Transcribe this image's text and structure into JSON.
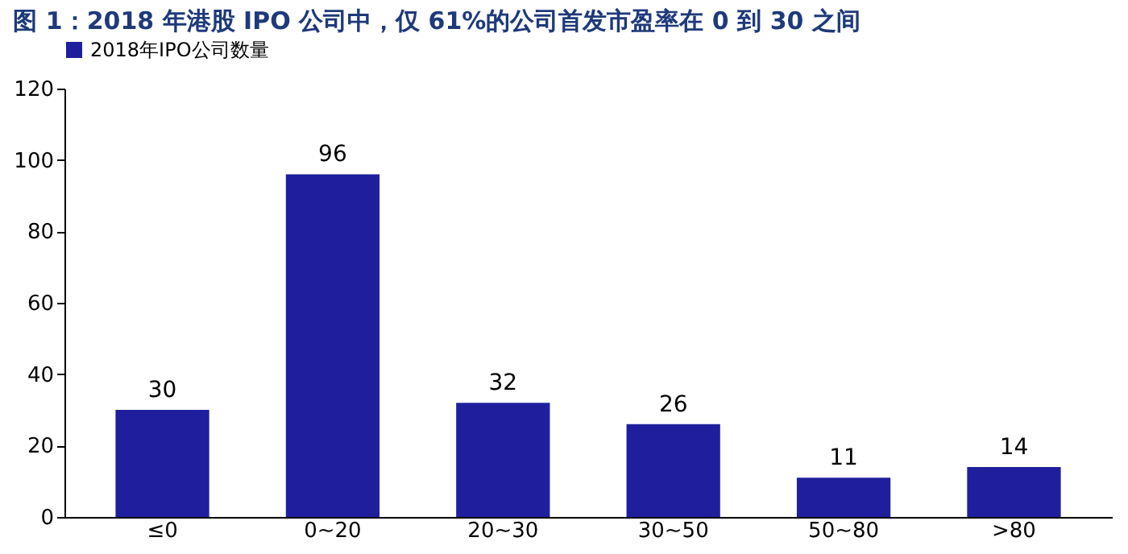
{
  "chart_data": {
    "type": "bar",
    "title": "图 1：2018 年港股 IPO 公司中，仅 61%的公司首发市盈率在 0 到 30 之间",
    "categories": [
      "≤0",
      "0~20",
      "20~30",
      "30~50",
      "50~80",
      ">80"
    ],
    "series": [
      {
        "name": "2018年IPO公司数量",
        "color": "#1f1f9e",
        "values": [
          30,
          96,
          32,
          26,
          11,
          14
        ]
      }
    ],
    "ylim": [
      0,
      120
    ],
    "yticks": [
      0,
      20,
      40,
      60,
      80,
      100,
      120
    ],
    "grid": false,
    "legend": "top",
    "data_labels": true
  }
}
